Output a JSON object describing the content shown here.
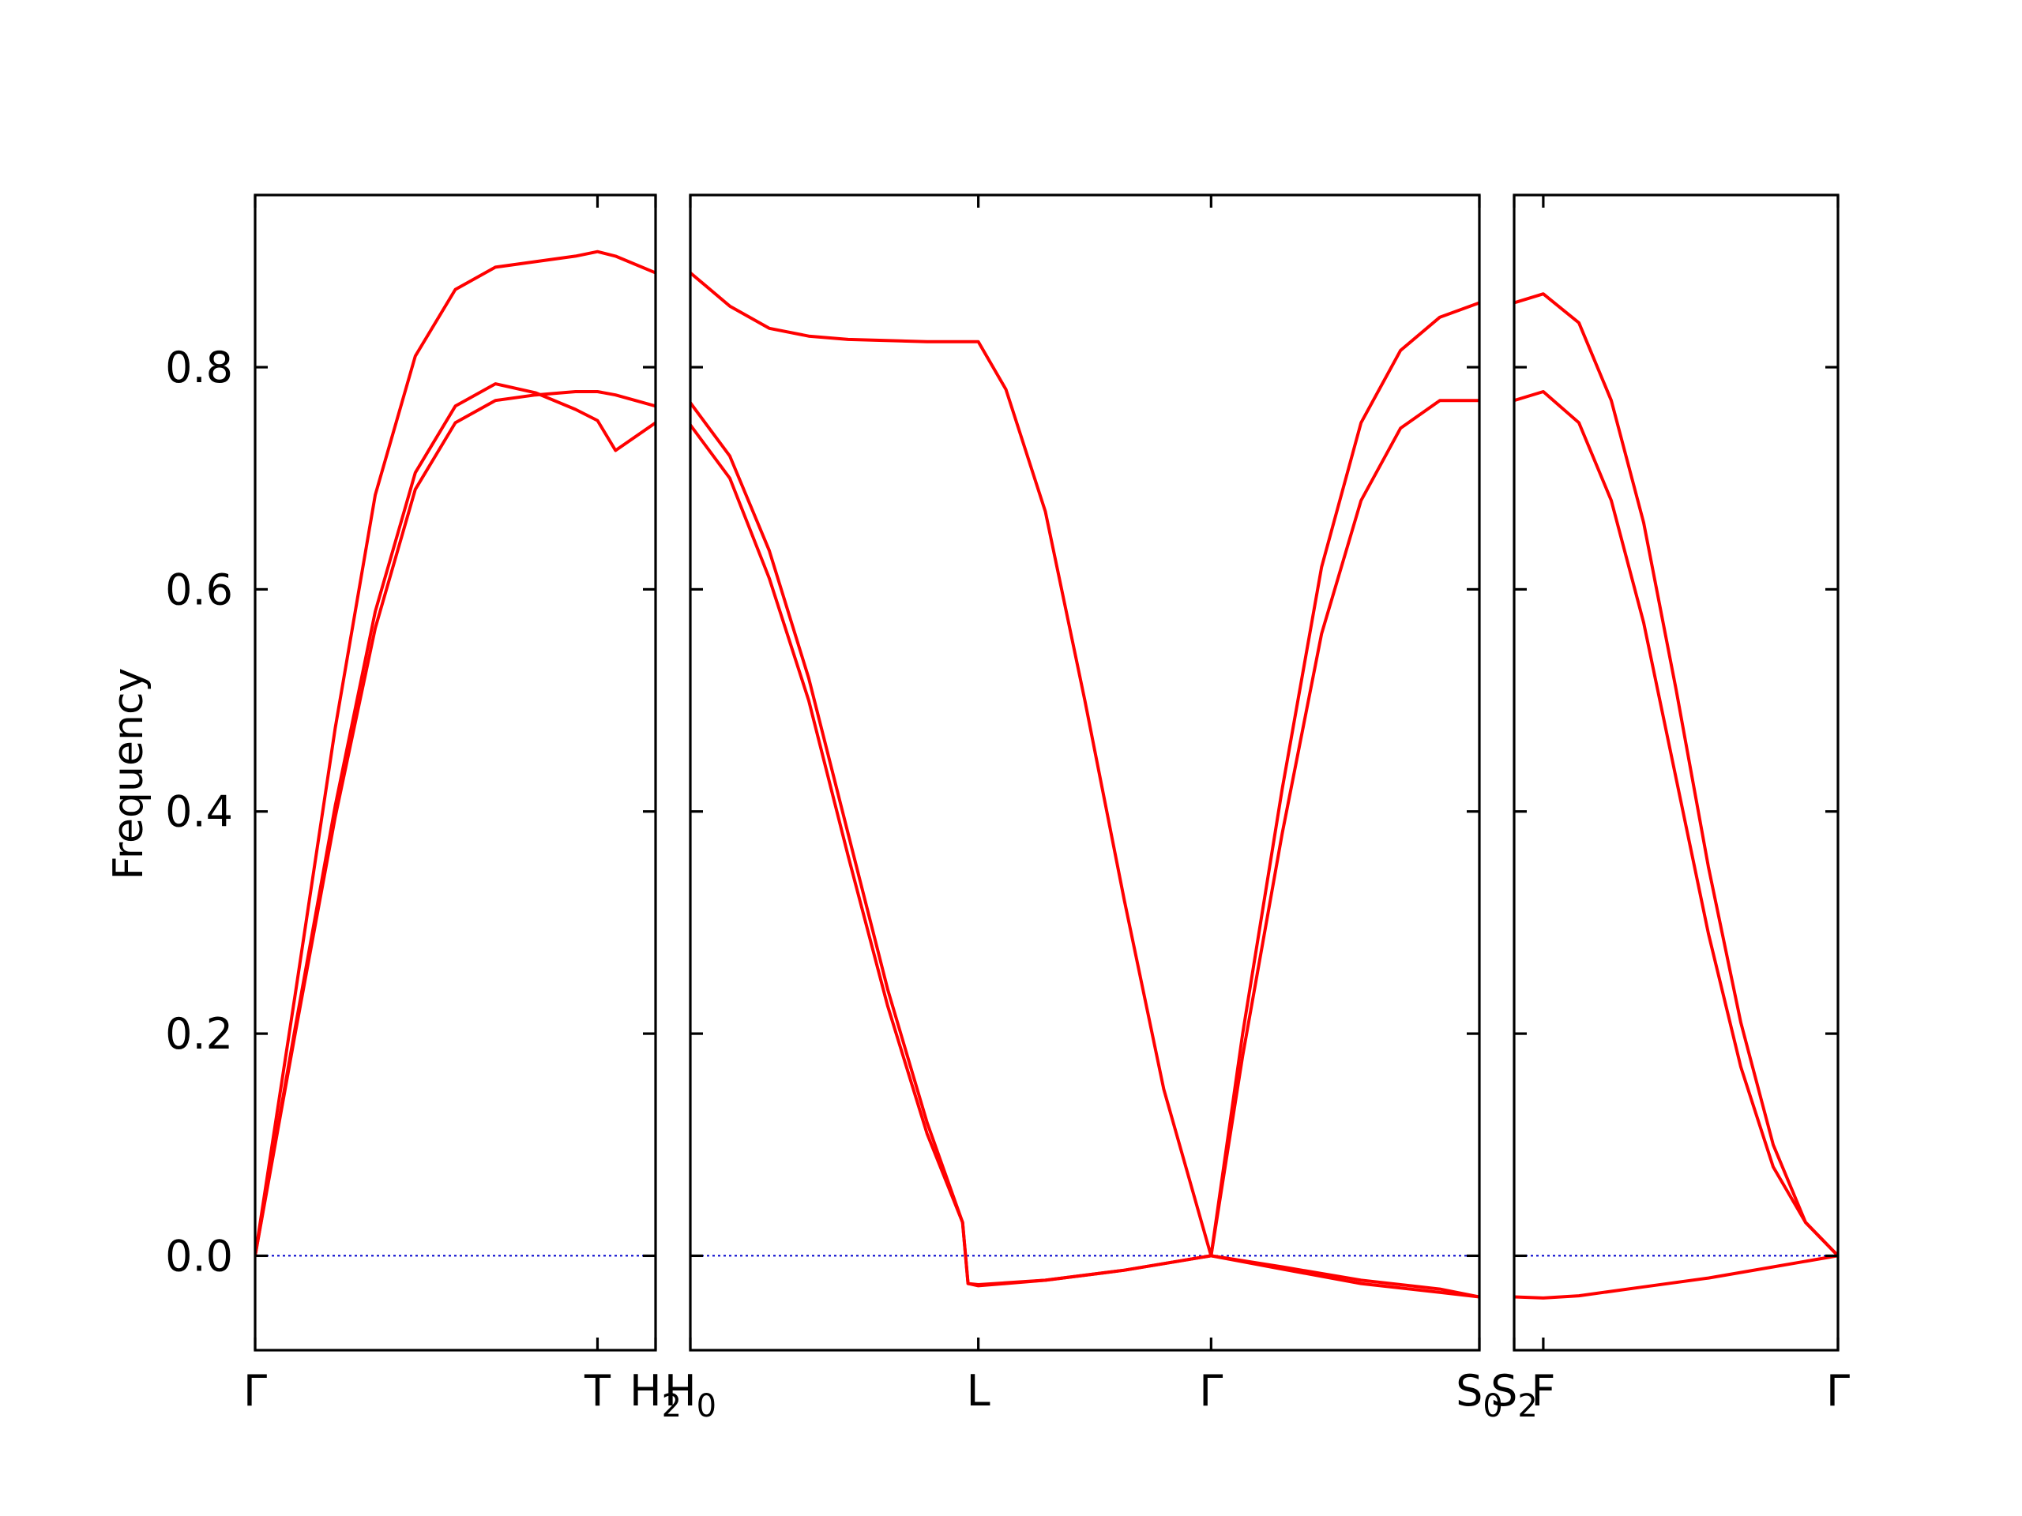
{
  "chart_data": {
    "type": "line",
    "ylabel": "Frequency",
    "ylim": [
      -0.085,
      0.955
    ],
    "yticks": [
      0.0,
      0.2,
      0.4,
      0.6,
      0.8
    ],
    "ytick_labels": [
      "0.0",
      "0.2",
      "0.4",
      "0.6",
      "0.8"
    ],
    "grid": false,
    "band_color": "#ff0000",
    "zero_line_color": "#0000cc",
    "panels": [
      {
        "name": "panel-1",
        "xlim": [
          0,
          1
        ],
        "ticks": [
          {
            "x": 0.0,
            "label": "Γ"
          },
          {
            "x": 0.855,
            "label": "T"
          },
          {
            "x": 1.0,
            "label": "H",
            "sub": "2"
          }
        ],
        "bands": [
          {
            "name": "band-1",
            "points": [
              [
                0,
                0
              ],
              [
                0.1,
                0.205
              ],
              [
                0.2,
                0.405
              ],
              [
                0.3,
                0.58
              ],
              [
                0.4,
                0.705
              ],
              [
                0.5,
                0.765
              ],
              [
                0.6,
                0.785
              ],
              [
                0.7,
                0.777
              ],
              [
                0.8,
                0.762
              ],
              [
                0.855,
                0.752
              ],
              [
                0.9,
                0.725
              ],
              [
                1.0,
                0.75
              ]
            ]
          },
          {
            "name": "band-2",
            "points": [
              [
                0,
                0
              ],
              [
                0.1,
                0.235
              ],
              [
                0.2,
                0.475
              ],
              [
                0.3,
                0.685
              ],
              [
                0.4,
                0.81
              ],
              [
                0.5,
                0.87
              ],
              [
                0.6,
                0.89
              ],
              [
                0.7,
                0.895
              ],
              [
                0.8,
                0.9
              ],
              [
                0.855,
                0.904
              ],
              [
                0.9,
                0.9
              ],
              [
                1.0,
                0.885
              ]
            ]
          },
          {
            "name": "band-3",
            "points": [
              [
                0,
                0
              ],
              [
                0.1,
                0.2
              ],
              [
                0.2,
                0.395
              ],
              [
                0.3,
                0.565
              ],
              [
                0.4,
                0.69
              ],
              [
                0.5,
                0.75
              ],
              [
                0.6,
                0.77
              ],
              [
                0.7,
                0.775
              ],
              [
                0.8,
                0.778
              ],
              [
                0.855,
                0.778
              ],
              [
                0.9,
                0.775
              ],
              [
                1.0,
                0.765
              ]
            ]
          }
        ]
      },
      {
        "name": "panel-2",
        "xlim": [
          0,
          1
        ],
        "ticks": [
          {
            "x": 0.0,
            "label": "H",
            "sub": "0"
          },
          {
            "x": 0.365,
            "label": "L"
          },
          {
            "x": 0.66,
            "label": "Γ"
          },
          {
            "x": 1.0,
            "label": "S",
            "sub": "0"
          }
        ],
        "bands": [
          {
            "name": "band-1",
            "points": [
              [
                0,
                0.748
              ],
              [
                0.05,
                0.7
              ],
              [
                0.1,
                0.61
              ],
              [
                0.15,
                0.5
              ],
              [
                0.2,
                0.36
              ],
              [
                0.25,
                0.225
              ],
              [
                0.3,
                0.11
              ],
              [
                0.345,
                0.03
              ],
              [
                0.352,
                -0.025
              ],
              [
                0.365,
                -0.026
              ],
              [
                0.45,
                -0.022
              ],
              [
                0.55,
                -0.013
              ],
              [
                0.66,
                0
              ],
              [
                0.75,
                -0.01
              ],
              [
                0.85,
                -0.022
              ],
              [
                0.95,
                -0.03
              ],
              [
                1.0,
                -0.037
              ]
            ]
          },
          {
            "name": "band-2",
            "points": [
              [
                0,
                0.768
              ],
              [
                0.05,
                0.72
              ],
              [
                0.1,
                0.635
              ],
              [
                0.15,
                0.52
              ],
              [
                0.2,
                0.38
              ],
              [
                0.25,
                0.24
              ],
              [
                0.3,
                0.12
              ],
              [
                0.345,
                0.03
              ],
              [
                0.352,
                -0.025
              ],
              [
                0.365,
                -0.027
              ],
              [
                0.45,
                -0.022
              ],
              [
                0.55,
                -0.013
              ],
              [
                0.66,
                0
              ],
              [
                0.75,
                -0.012
              ],
              [
                0.85,
                -0.025
              ],
              [
                0.95,
                -0.033
              ],
              [
                1.0,
                -0.037
              ]
            ]
          },
          {
            "name": "band-3",
            "points": [
              [
                0,
                0.885
              ],
              [
                0.05,
                0.855
              ],
              [
                0.1,
                0.835
              ],
              [
                0.15,
                0.828
              ],
              [
                0.2,
                0.825
              ],
              [
                0.3,
                0.823
              ],
              [
                0.365,
                0.823
              ],
              [
                0.4,
                0.78
              ],
              [
                0.45,
                0.67
              ],
              [
                0.5,
                0.5
              ],
              [
                0.55,
                0.32
              ],
              [
                0.6,
                0.15
              ],
              [
                0.66,
                0
              ],
              [
                0.7,
                0.18
              ],
              [
                0.75,
                0.38
              ],
              [
                0.8,
                0.56
              ],
              [
                0.85,
                0.68
              ],
              [
                0.9,
                0.745
              ],
              [
                0.95,
                0.77
              ],
              [
                1.0,
                0.77
              ]
            ]
          },
          {
            "name": "band-4",
            "points": [
              [
                0.66,
                0
              ],
              [
                0.7,
                0.2
              ],
              [
                0.75,
                0.42
              ],
              [
                0.8,
                0.62
              ],
              [
                0.85,
                0.75
              ],
              [
                0.9,
                0.815
              ],
              [
                0.95,
                0.845
              ],
              [
                1.0,
                0.858
              ]
            ]
          }
        ]
      },
      {
        "name": "panel-3",
        "xlim": [
          0,
          1
        ],
        "ticks": [
          {
            "x": 0.0,
            "label": "S",
            "sub": "2"
          },
          {
            "x": 0.09,
            "label": "F"
          },
          {
            "x": 1.0,
            "label": "Γ"
          }
        ],
        "bands": [
          {
            "name": "band-1",
            "points": [
              [
                0,
                -0.037
              ],
              [
                0.09,
                -0.038
              ],
              [
                0.2,
                -0.036
              ],
              [
                0.4,
                -0.028
              ],
              [
                0.6,
                -0.02
              ],
              [
                0.8,
                -0.01
              ],
              [
                1.0,
                0
              ]
            ]
          },
          {
            "name": "band-2",
            "points": [
              [
                0,
                0.77
              ],
              [
                0.09,
                0.778
              ],
              [
                0.2,
                0.75
              ],
              [
                0.3,
                0.68
              ],
              [
                0.4,
                0.57
              ],
              [
                0.5,
                0.43
              ],
              [
                0.6,
                0.29
              ],
              [
                0.7,
                0.17
              ],
              [
                0.8,
                0.08
              ],
              [
                0.9,
                0.03
              ],
              [
                1.0,
                0
              ]
            ]
          },
          {
            "name": "band-3",
            "points": [
              [
                0,
                0.858
              ],
              [
                0.09,
                0.866
              ],
              [
                0.2,
                0.84
              ],
              [
                0.3,
                0.77
              ],
              [
                0.4,
                0.66
              ],
              [
                0.5,
                0.51
              ],
              [
                0.6,
                0.35
              ],
              [
                0.7,
                0.21
              ],
              [
                0.8,
                0.1
              ],
              [
                0.9,
                0.03
              ],
              [
                1.0,
                0
              ]
            ]
          }
        ]
      }
    ]
  }
}
